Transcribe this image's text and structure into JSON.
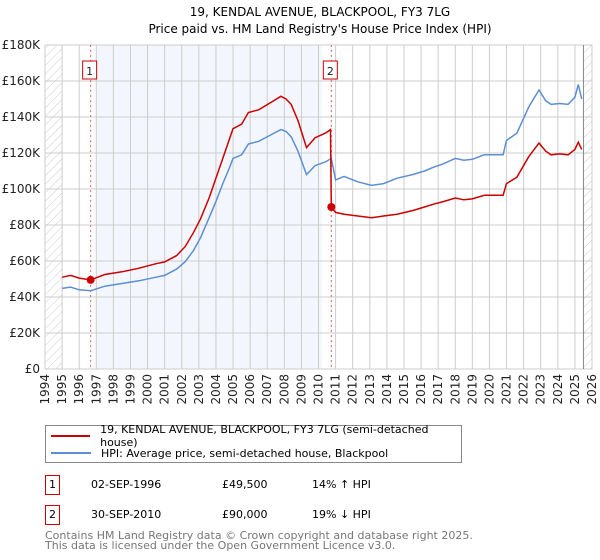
{
  "chart_data": {
    "type": "line",
    "title": "19, KENDAL AVENUE, BLACKPOOL, FY3 7LG",
    "subtitle": "Price paid vs. HM Land Registry's House Price Index (HPI)",
    "xlim": [
      1994,
      2026
    ],
    "ylim": [
      0,
      180000
    ],
    "x_ticks": [
      "1994",
      "1995",
      "1996",
      "1997",
      "1998",
      "1999",
      "2000",
      "2001",
      "2002",
      "2003",
      "2004",
      "2005",
      "2006",
      "2007",
      "2008",
      "2009",
      "2010",
      "2011",
      "2012",
      "2013",
      "2014",
      "2015",
      "2016",
      "2017",
      "2018",
      "2019",
      "2020",
      "2021",
      "2022",
      "2023",
      "2024",
      "2025",
      "2026"
    ],
    "y_ticks": [
      {
        "v": 0,
        "label": "£0"
      },
      {
        "v": 20000,
        "label": "£20K"
      },
      {
        "v": 40000,
        "label": "£40K"
      },
      {
        "v": 60000,
        "label": "£60K"
      },
      {
        "v": 80000,
        "label": "£80K"
      },
      {
        "v": 100000,
        "label": "£100K"
      },
      {
        "v": 120000,
        "label": "£120K"
      },
      {
        "v": 140000,
        "label": "£140K"
      },
      {
        "v": 160000,
        "label": "£160K"
      },
      {
        "v": 180000,
        "label": "£180K"
      }
    ],
    "grid": true,
    "series": [
      {
        "name": "19, KENDAL AVENUE, BLACKPOOL, FY3 7LG (semi-detached house)",
        "color": "#cc0000",
        "x": [
          1995.0,
          1995.5,
          1996.0,
          1996.67,
          1997.5,
          1998.5,
          1999.5,
          2000.5,
          2001.0,
          2001.7,
          2002.2,
          2002.7,
          2003.1,
          2003.6,
          2004.0,
          2004.4,
          2004.8,
          2005.0,
          2005.5,
          2005.9,
          2006.5,
          2007.2,
          2007.8,
          2008.1,
          2008.4,
          2008.8,
          2009.3,
          2009.8,
          2010.4,
          2010.7,
          2010.75,
          2011.0,
          2011.5,
          2012.3,
          2013.1,
          2013.8,
          2014.6,
          2015.5,
          2016.2,
          2016.7,
          2017.3,
          2018.0,
          2018.5,
          2019.0,
          2019.7,
          2020.8,
          2021.0,
          2021.6,
          2022.3,
          2022.9,
          2023.3,
          2023.6,
          2024.1,
          2024.6,
          2025.0,
          2025.2,
          2025.4
        ],
        "y": [
          51000,
          52000,
          50500,
          49500,
          52500,
          54000,
          56000,
          58500,
          59500,
          63000,
          68000,
          76000,
          83500,
          95000,
          106000,
          117000,
          128000,
          133500,
          136000,
          142500,
          144000,
          148000,
          151500,
          150000,
          147000,
          138000,
          123000,
          128500,
          131000,
          133000,
          90000,
          87000,
          86000,
          85000,
          84000,
          85000,
          86000,
          88000,
          90000,
          91500,
          93000,
          95000,
          94000,
          94500,
          96500,
          96500,
          103000,
          106500,
          118000,
          125500,
          121000,
          119000,
          119500,
          119000,
          122000,
          126000,
          122000
        ]
      },
      {
        "name": "HPI: Average price, semi-detached house, Blackpool",
        "color": "#5b8fd1",
        "x": [
          1995.0,
          1995.5,
          1996.0,
          1996.67,
          1997.5,
          1998.5,
          1999.5,
          2000.5,
          2001.0,
          2001.7,
          2002.2,
          2002.7,
          2003.1,
          2003.6,
          2004.0,
          2004.4,
          2004.8,
          2005.0,
          2005.5,
          2005.9,
          2006.5,
          2007.2,
          2007.8,
          2008.1,
          2008.4,
          2008.8,
          2009.3,
          2009.8,
          2010.4,
          2010.75,
          2011.0,
          2011.5,
          2012.3,
          2013.1,
          2013.8,
          2014.6,
          2015.5,
          2016.2,
          2016.7,
          2017.3,
          2018.0,
          2018.5,
          2019.0,
          2019.7,
          2020.8,
          2021.0,
          2021.6,
          2022.3,
          2022.9,
          2023.3,
          2023.6,
          2024.1,
          2024.6,
          2025.0,
          2025.2,
          2025.4
        ],
        "y": [
          44800,
          45500,
          44000,
          43500,
          46000,
          47500,
          49000,
          51000,
          52000,
          55500,
          59600,
          66000,
          73000,
          84000,
          93000,
          103000,
          112000,
          117000,
          119000,
          125000,
          126500,
          130000,
          133000,
          132000,
          129000,
          121000,
          108000,
          113000,
          115000,
          117000,
          105000,
          107000,
          104000,
          102000,
          103000,
          106000,
          108000,
          110000,
          112000,
          114000,
          117000,
          116000,
          116500,
          119000,
          119000,
          127000,
          131000,
          145600,
          155000,
          149000,
          147000,
          147500,
          147000,
          151000,
          158000,
          150000
        ]
      }
    ],
    "sales": [
      {
        "num": "1",
        "x": 1996.67,
        "y": 49500,
        "date": "02-SEP-1996",
        "price": "£49,500",
        "hpi": "14% ↑ HPI"
      },
      {
        "num": "2",
        "x": 2010.75,
        "y": 90000,
        "date": "30-SEP-2010",
        "price": "£90,000",
        "hpi": "19% ↓ HPI"
      }
    ],
    "shaded_range": [
      1997.0,
      2010.2
    ],
    "hatched_ranges": [
      [
        1994,
        1995
      ],
      [
        2025.5,
        2026
      ]
    ]
  },
  "footer": {
    "line1": "Contains HM Land Registry data © Crown copyright and database right 2025.",
    "line2": "This data is licensed under the Open Government Licence v3.0."
  }
}
